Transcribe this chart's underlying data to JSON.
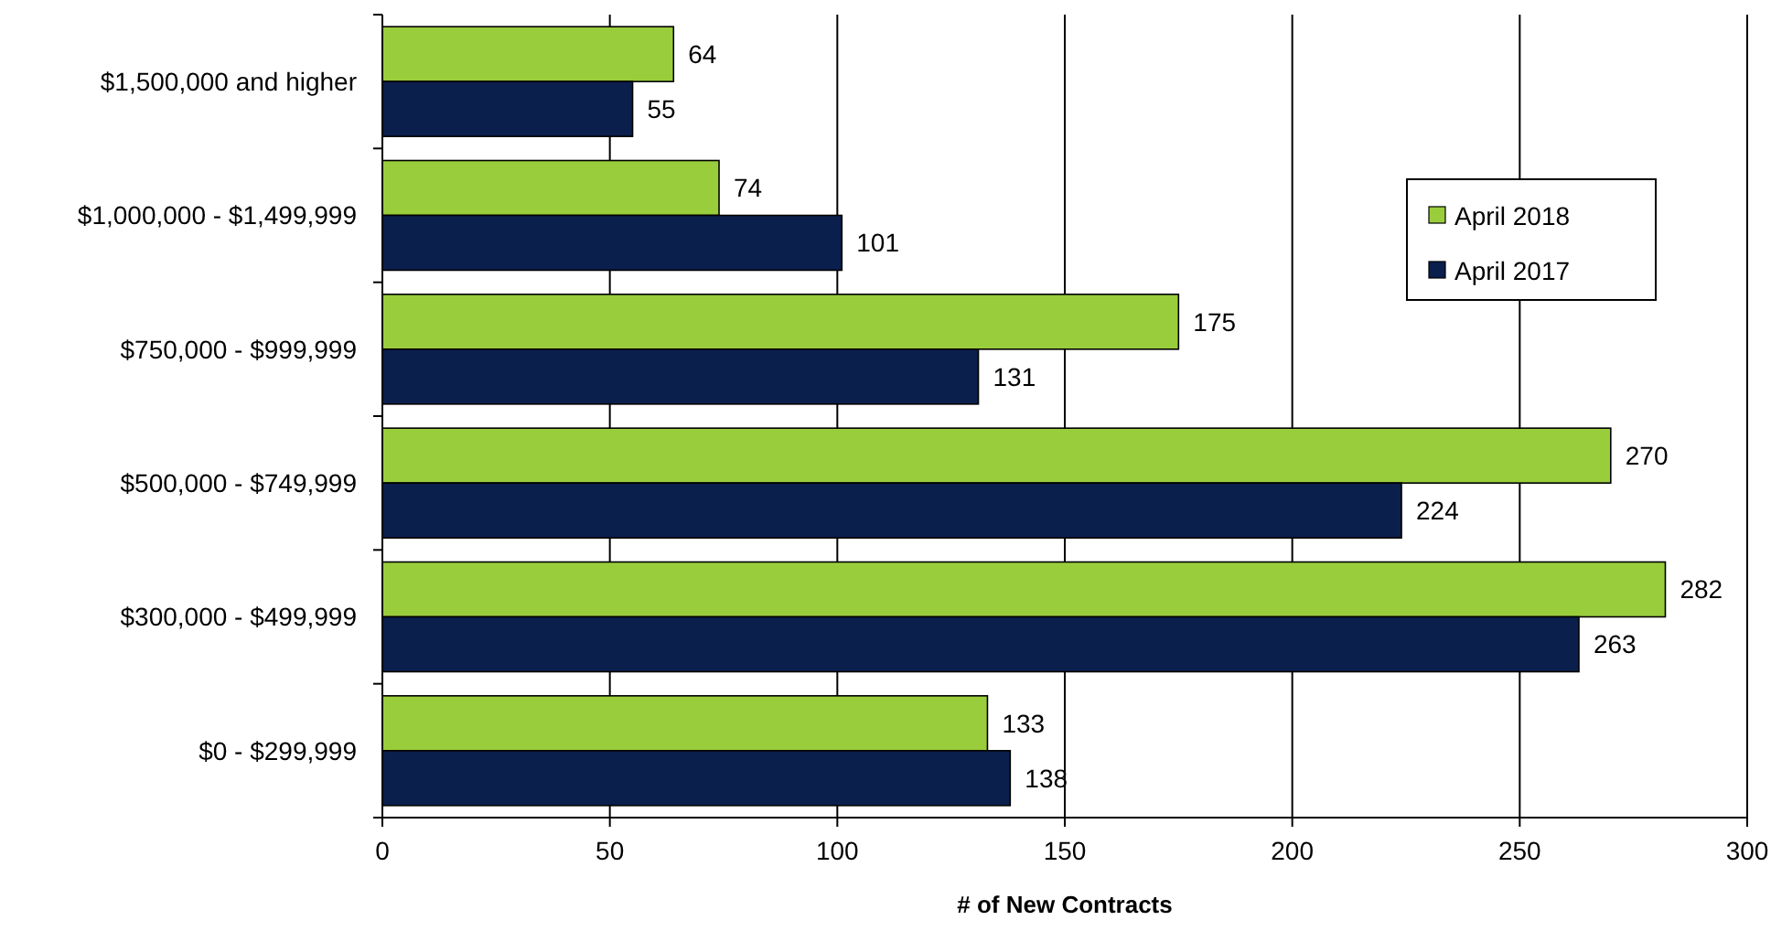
{
  "chart_data": {
    "type": "bar",
    "orientation": "horizontal",
    "xlabel": "# of New Contracts",
    "categories": [
      "$1,500,000 and higher",
      "$1,000,000 - $1,499,999",
      "$750,000 - $999,999",
      "$500,000 - $749,999",
      "$300,000 - $499,999",
      "$0 - $299,999"
    ],
    "series": [
      {
        "name": "April 2018",
        "color": "#9acd3c",
        "values": [
          64,
          74,
          175,
          270,
          282,
          133
        ]
      },
      {
        "name": "April 2017",
        "color": "#0b1f4d",
        "values": [
          55,
          101,
          131,
          224,
          263,
          138
        ]
      }
    ],
    "xlim": [
      0,
      300
    ],
    "xticks": [
      0,
      50,
      100,
      150,
      200,
      250,
      300
    ],
    "grid": "x",
    "legend": "right",
    "data_labels": true
  }
}
